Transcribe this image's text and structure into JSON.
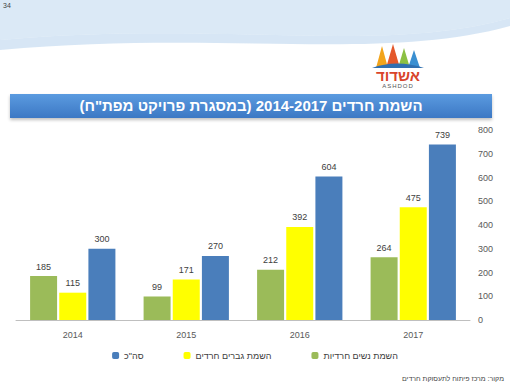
{
  "chart_data": {
    "type": "bar",
    "title": "השמת חרדים 2014-2017 (במסגרת פרויקט מפת\"ח)",
    "categories": [
      "2014",
      "2015",
      "2016",
      "2017"
    ],
    "series": [
      {
        "name": "השמת נשים חרדיות",
        "color": "#9bbb59",
        "values": [
          185,
          99,
          212,
          264
        ]
      },
      {
        "name": "השמת גברים חרדים",
        "color": "#ffff00",
        "values": [
          115,
          171,
          392,
          475
        ]
      },
      {
        "name": "סה\"כ",
        "color": "#4a7ebb",
        "values": [
          300,
          270,
          604,
          739
        ]
      }
    ],
    "ylim": [
      0,
      800
    ],
    "yticks": [
      0,
      100,
      200,
      300,
      400,
      500,
      600,
      700,
      800
    ],
    "grid": false,
    "data_labels": true,
    "legend": "bottom",
    "annotations": [
      "34",
      "אשדוד",
      "ASHDOD",
      "מקור: מרכז פיתוח לתעסוקת חרדים"
    ]
  }
}
